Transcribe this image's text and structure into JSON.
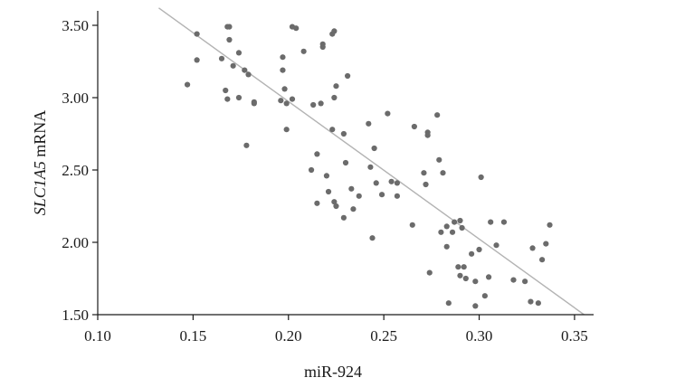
{
  "chart_data": {
    "type": "scatter",
    "title": "",
    "xlabel": "miR-924",
    "ylabel_parts": [
      {
        "text": "SLC1A5",
        "italic": true
      },
      {
        "text": " mRNA",
        "italic": false
      }
    ],
    "xlim": [
      0.1,
      0.36
    ],
    "ylim": [
      1.5,
      3.6
    ],
    "x_ticks": [
      0.1,
      0.15,
      0.2,
      0.25,
      0.3,
      0.35
    ],
    "x_tick_labels": [
      "0.10",
      "0.15",
      "0.20",
      "0.25",
      "0.30",
      "0.35"
    ],
    "y_ticks": [
      1.5,
      2.0,
      2.5,
      3.0,
      3.5
    ],
    "y_tick_labels": [
      "1.50",
      "2.00",
      "2.50",
      "3.00",
      "3.50"
    ],
    "grid": false,
    "legend": "none",
    "point_color": "#6b6b6b",
    "trend_color": "#b3b3b3",
    "trend_line": {
      "x": [
        0.132,
        0.355
      ],
      "y": [
        3.62,
        1.5
      ]
    },
    "points": [
      [
        0.147,
        3.09
      ],
      [
        0.152,
        3.44
      ],
      [
        0.152,
        3.26
      ],
      [
        0.165,
        3.27
      ],
      [
        0.167,
        3.05
      ],
      [
        0.168,
        3.49
      ],
      [
        0.169,
        3.49
      ],
      [
        0.168,
        2.99
      ],
      [
        0.169,
        3.4
      ],
      [
        0.171,
        3.22
      ],
      [
        0.174,
        3.0
      ],
      [
        0.174,
        3.31
      ],
      [
        0.177,
        3.19
      ],
      [
        0.178,
        2.67
      ],
      [
        0.179,
        3.16
      ],
      [
        0.182,
        2.97
      ],
      [
        0.182,
        2.96
      ],
      [
        0.196,
        2.98
      ],
      [
        0.197,
        3.19
      ],
      [
        0.197,
        3.28
      ],
      [
        0.198,
        3.06
      ],
      [
        0.199,
        2.78
      ],
      [
        0.199,
        2.96
      ],
      [
        0.202,
        2.99
      ],
      [
        0.202,
        3.49
      ],
      [
        0.204,
        3.48
      ],
      [
        0.208,
        3.32
      ],
      [
        0.212,
        2.5
      ],
      [
        0.213,
        2.95
      ],
      [
        0.215,
        2.61
      ],
      [
        0.215,
        2.27
      ],
      [
        0.217,
        2.96
      ],
      [
        0.218,
        3.37
      ],
      [
        0.218,
        3.35
      ],
      [
        0.22,
        2.46
      ],
      [
        0.221,
        2.35
      ],
      [
        0.223,
        2.78
      ],
      [
        0.223,
        3.44
      ],
      [
        0.224,
        3.46
      ],
      [
        0.224,
        3.0
      ],
      [
        0.225,
        3.08
      ],
      [
        0.224,
        2.28
      ],
      [
        0.225,
        2.25
      ],
      [
        0.229,
        2.17
      ],
      [
        0.229,
        2.75
      ],
      [
        0.23,
        2.55
      ],
      [
        0.231,
        3.15
      ],
      [
        0.233,
        2.37
      ],
      [
        0.234,
        2.23
      ],
      [
        0.237,
        2.32
      ],
      [
        0.242,
        2.82
      ],
      [
        0.243,
        2.52
      ],
      [
        0.244,
        2.03
      ],
      [
        0.245,
        2.65
      ],
      [
        0.246,
        2.41
      ],
      [
        0.249,
        2.33
      ],
      [
        0.252,
        2.89
      ],
      [
        0.254,
        2.42
      ],
      [
        0.257,
        2.32
      ],
      [
        0.257,
        2.41
      ],
      [
        0.265,
        2.12
      ],
      [
        0.266,
        2.8
      ],
      [
        0.271,
        2.48
      ],
      [
        0.272,
        2.4
      ],
      [
        0.273,
        2.76
      ],
      [
        0.273,
        2.74
      ],
      [
        0.274,
        1.79
      ],
      [
        0.278,
        2.88
      ],
      [
        0.279,
        2.57
      ],
      [
        0.28,
        2.07
      ],
      [
        0.281,
        2.48
      ],
      [
        0.283,
        2.11
      ],
      [
        0.283,
        1.97
      ],
      [
        0.284,
        1.58
      ],
      [
        0.286,
        2.07
      ],
      [
        0.287,
        2.14
      ],
      [
        0.289,
        1.83
      ],
      [
        0.29,
        2.15
      ],
      [
        0.29,
        1.77
      ],
      [
        0.291,
        2.1
      ],
      [
        0.292,
        1.83
      ],
      [
        0.293,
        1.75
      ],
      [
        0.296,
        1.92
      ],
      [
        0.298,
        1.56
      ],
      [
        0.298,
        1.73
      ],
      [
        0.3,
        1.95
      ],
      [
        0.301,
        2.45
      ],
      [
        0.303,
        1.63
      ],
      [
        0.305,
        1.76
      ],
      [
        0.306,
        2.14
      ],
      [
        0.309,
        1.98
      ],
      [
        0.313,
        2.14
      ],
      [
        0.318,
        1.74
      ],
      [
        0.324,
        1.73
      ],
      [
        0.327,
        1.59
      ],
      [
        0.328,
        1.96
      ],
      [
        0.331,
        1.58
      ],
      [
        0.333,
        1.88
      ],
      [
        0.335,
        1.99
      ],
      [
        0.337,
        2.12
      ]
    ]
  }
}
